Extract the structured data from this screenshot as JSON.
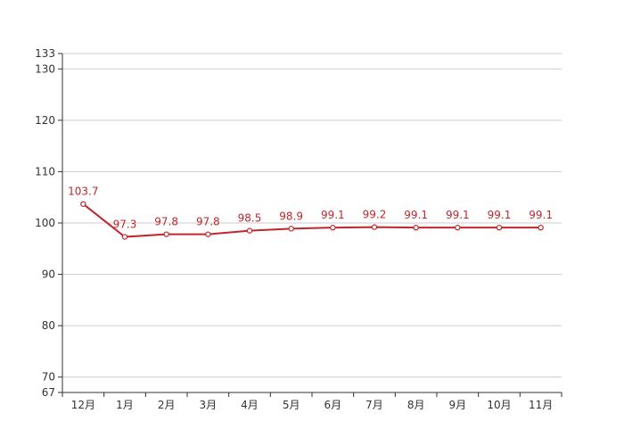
{
  "chart_data": {
    "type": "line",
    "categories": [
      "12月",
      "1月",
      "2月",
      "3月",
      "4月",
      "5月",
      "6月",
      "7月",
      "8月",
      "9月",
      "10月",
      "11月"
    ],
    "series": [
      {
        "values": [
          103.7,
          97.3,
          97.8,
          97.8,
          98.5,
          98.9,
          99.1,
          99.2,
          99.1,
          99.1,
          99.1,
          99.1
        ],
        "color": "#c0272d"
      }
    ],
    "data_labels": [
      "103.7",
      "97.3",
      "97.8",
      "97.8",
      "98.5",
      "98.9",
      "99.1",
      "99.2",
      "99.1",
      "99.1",
      "99.1",
      "99.1"
    ],
    "y_ticks": [
      "67",
      "70",
      "80",
      "90",
      "100",
      "110",
      "120",
      "130",
      "133"
    ],
    "ylim": [
      67,
      133
    ],
    "grid": true,
    "title": "",
    "xlabel": "",
    "ylabel": ""
  }
}
